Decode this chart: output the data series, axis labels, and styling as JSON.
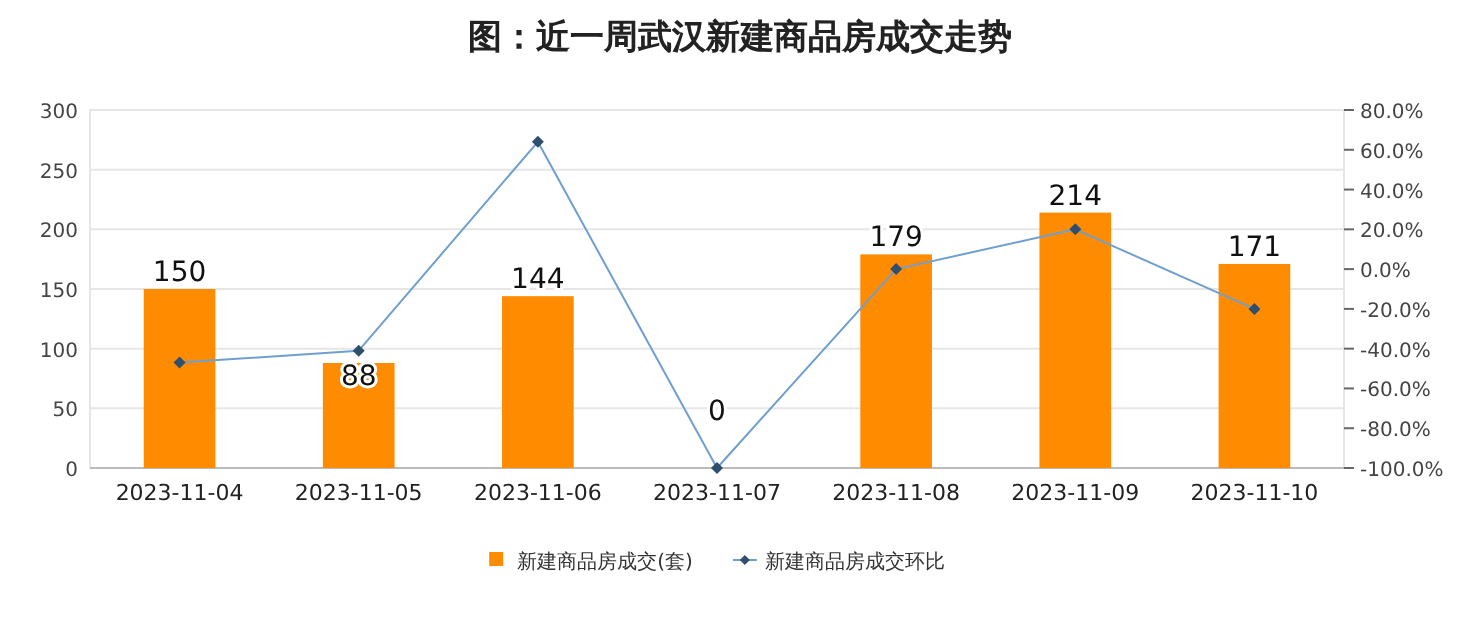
{
  "chart_data": {
    "type": "bar",
    "title": "图：近一周武汉新建商品房成交走势",
    "categories": [
      "2023-11-04",
      "2023-11-05",
      "2023-11-06",
      "2023-11-07",
      "2023-11-08",
      "2023-11-09",
      "2023-11-10"
    ],
    "series": [
      {
        "name": "新建商品房成交(套)",
        "color": "#ff8c00",
        "values": [
          150,
          88,
          144,
          0,
          179,
          214,
          171
        ],
        "value_labels": [
          "150",
          "88",
          "144",
          "0",
          "179",
          "214",
          "171"
        ]
      },
      {
        "name": "新建商品房成交环比",
        "type": "line",
        "axis": "y2",
        "color": "#6f9fcf",
        "marker": "diamond",
        "values": [
          -47,
          -41,
          64,
          -100,
          0,
          20,
          -20
        ]
      }
    ],
    "ylim": [
      0,
      300
    ],
    "yticks": [
      0,
      50,
      100,
      150,
      200,
      250,
      300
    ],
    "y2lim": [
      -100,
      80
    ],
    "y2ticks": [
      {
        "value": -100,
        "label": "-100.0%"
      },
      {
        "value": -80,
        "label": "-80.0%"
      },
      {
        "value": -60,
        "label": "-60.0%"
      },
      {
        "value": -40,
        "label": "-40.0%"
      },
      {
        "value": -20,
        "label": "-20.0%"
      },
      {
        "value": 0,
        "label": "0.0%"
      },
      {
        "value": 20,
        "label": "20.0%"
      },
      {
        "value": 40,
        "label": "40.0%"
      },
      {
        "value": 60,
        "label": "60.0%"
      },
      {
        "value": 80,
        "label": "80.0%"
      }
    ],
    "grid": "y",
    "legend": "bottom"
  }
}
